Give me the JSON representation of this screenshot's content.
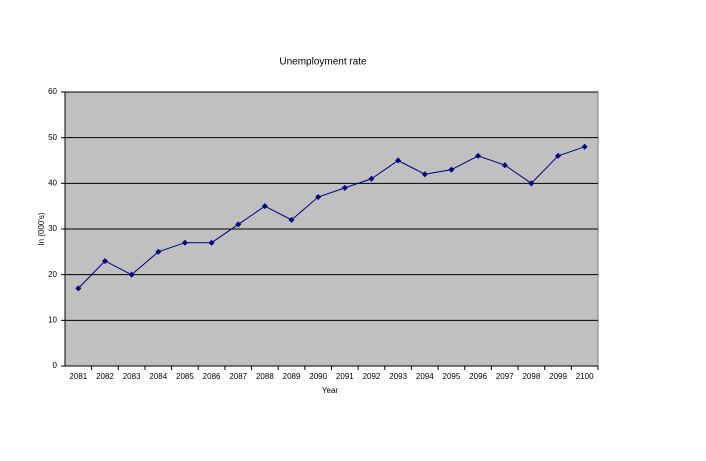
{
  "chart_data": {
    "type": "line",
    "title": "Unemployment rate",
    "x_label": "Year",
    "y_label": "In (000's)",
    "categories": [
      "2081",
      "2082",
      "2083",
      "2084",
      "2085",
      "2086",
      "2087",
      "2088",
      "2089",
      "2090",
      "2091",
      "2092",
      "2093",
      "2094",
      "2095",
      "2096",
      "2097",
      "2098",
      "2099",
      "2100"
    ],
    "series": [
      {
        "name": "Unemployment rate",
        "color": "#000080",
        "values": [
          17,
          23,
          20,
          25,
          27,
          27,
          31,
          35,
          32,
          37,
          39,
          41,
          45,
          42,
          43,
          46,
          44,
          40,
          46,
          48
        ]
      }
    ],
    "ylim": [
      0,
      60
    ],
    "yticks": [
      0,
      10,
      20,
      30,
      40,
      50,
      60
    ],
    "grid": true,
    "plot_background": "#c0c0c0"
  }
}
